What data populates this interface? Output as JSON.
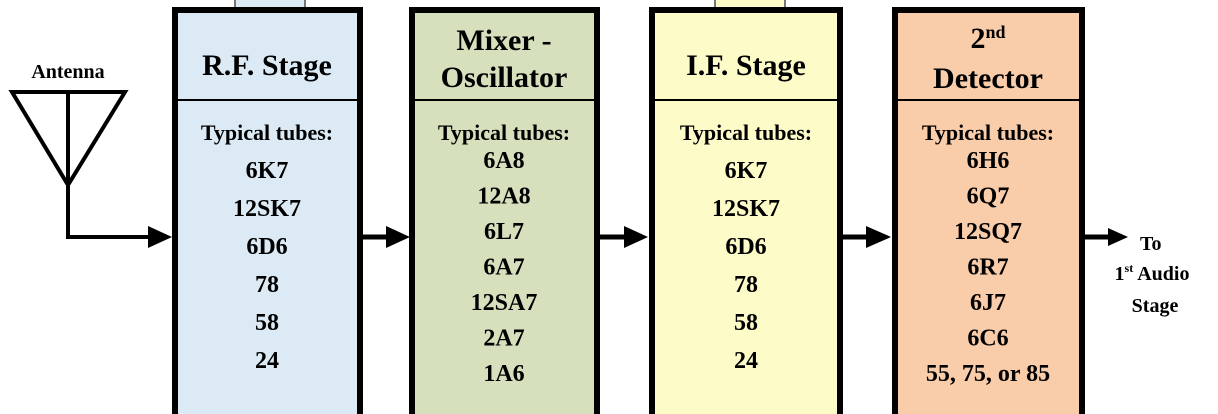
{
  "antenna": "Antenna",
  "stages": [
    {
      "title": "R.F. Stage",
      "tubes_label": "Typical tubes:",
      "tubes": [
        "6K7",
        "12SK7",
        "6D6",
        "78",
        "58",
        "24"
      ]
    },
    {
      "title_lines": [
        "Mixer -",
        "Oscillator"
      ],
      "tubes_label": "Typical tubes:",
      "tubes": [
        "6A8",
        "12A8",
        "6L7",
        "6A7",
        "12SA7",
        "2A7",
        "1A6"
      ]
    },
    {
      "title": "I.F. Stage",
      "tubes_label": "Typical tubes:",
      "tubes": [
        "6K7",
        "12SK7",
        "6D6",
        "78",
        "58",
        "24"
      ]
    },
    {
      "title_parts": {
        "number": "2",
        "suffix": "nd",
        "text": "Detector"
      },
      "tubes_label": "Typical tubes:",
      "tubes": [
        "6H6",
        "6Q7",
        "12SQ7",
        "6R7",
        "6J7",
        "6C6",
        "55, 75, or 85"
      ]
    }
  ],
  "output": {
    "line1": "To",
    "line2_number": "1",
    "line2_suffix": "st",
    "line2_text": "Audio",
    "line3": "Stage"
  }
}
